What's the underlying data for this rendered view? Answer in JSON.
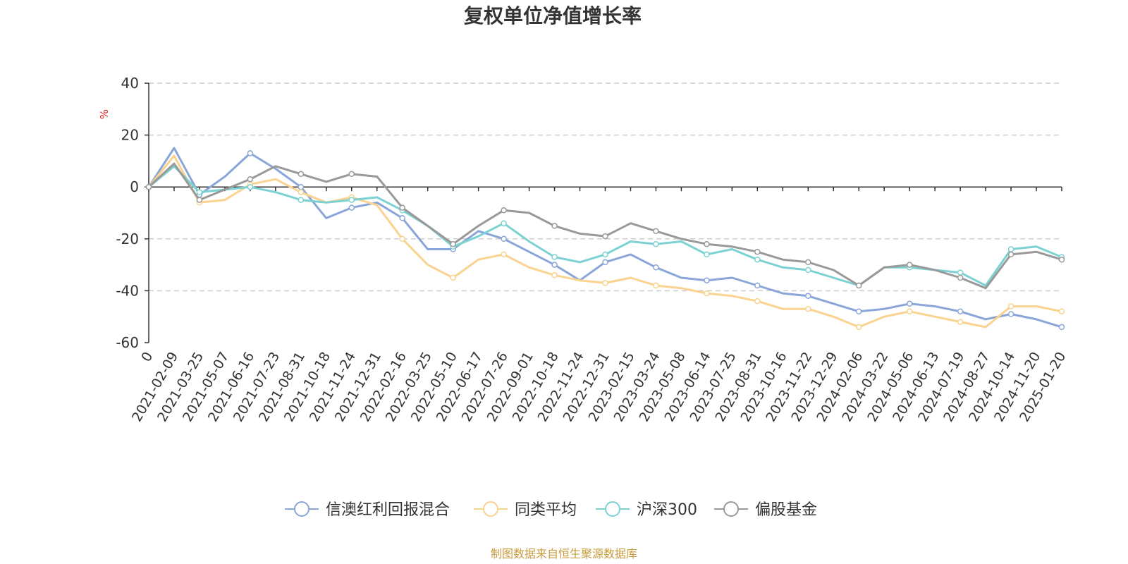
{
  "chart_data": {
    "type": "line",
    "title": "复权单位净值增长率",
    "ylabel": "%",
    "ylim": [
      -60,
      40
    ],
    "yticks": [
      40,
      20,
      0,
      -20,
      -40,
      -60
    ],
    "grid": true,
    "legend_position": "bottom",
    "x": [
      "0",
      "2021-02-09",
      "2021-03-25",
      "2021-05-07",
      "2021-06-16",
      "2021-07-23",
      "2021-08-31",
      "2021-10-18",
      "2021-11-24",
      "2021-12-31",
      "2022-02-16",
      "2022-03-25",
      "2022-05-10",
      "2022-06-17",
      "2022-07-26",
      "2022-09-01",
      "2022-10-18",
      "2022-11-24",
      "2022-12-31",
      "2023-02-15",
      "2023-03-24",
      "2023-05-08",
      "2023-06-14",
      "2023-07-25",
      "2023-08-31",
      "2023-10-16",
      "2023-11-22",
      "2023-12-29",
      "2024-02-06",
      "2024-03-22",
      "2024-05-06",
      "2024-06-13",
      "2024-07-19",
      "2024-08-27",
      "2024-10-14",
      "2024-11-20",
      "2025-01-20"
    ],
    "series": [
      {
        "name": "信澳红利回报混合",
        "color": "#8aa6d8",
        "values": [
          0,
          15,
          -3,
          4,
          13,
          7,
          0,
          -12,
          -8,
          -6,
          -12,
          -24,
          -24,
          -17,
          -20,
          -25,
          -30,
          -36,
          -29,
          -26,
          -31,
          -35,
          -36,
          -35,
          -38,
          -41,
          -42,
          -45,
          -48,
          -47,
          -45,
          -46,
          -48,
          -51,
          -49,
          -51,
          -54
        ]
      },
      {
        "name": "同类平均",
        "color": "#f9d38f",
        "values": [
          0,
          12,
          -6,
          -5,
          1,
          3,
          -2,
          -6,
          -4,
          -7,
          -20,
          -30,
          -35,
          -28,
          -26,
          -31,
          -34,
          -36,
          -37,
          -35,
          -38,
          -39,
          -41,
          -42,
          -44,
          -47,
          -47,
          -50,
          -54,
          -50,
          -48,
          -50,
          -52,
          -54,
          -46,
          -46,
          -48
        ]
      },
      {
        "name": "沪深300",
        "color": "#7cd2d3",
        "values": [
          0,
          8,
          -2,
          -1,
          0,
          -2,
          -5,
          -6,
          -5,
          -4,
          -9,
          -15,
          -23,
          -19,
          -14,
          -21,
          -27,
          -29,
          -26,
          -21,
          -22,
          -21,
          -26,
          -24,
          -28,
          -31,
          -32,
          -35,
          -38,
          -31,
          -31,
          -32,
          -33,
          -38,
          -24,
          -23,
          -27
        ]
      },
      {
        "name": "偏股基金",
        "color": "#999999",
        "values": [
          0,
          9,
          -5,
          -1,
          3,
          8,
          5,
          2,
          5,
          4,
          -8,
          -15,
          -22,
          -15,
          -9,
          -10,
          -15,
          -18,
          -19,
          -14,
          -17,
          -20,
          -22,
          -23,
          -25,
          -28,
          -29,
          -32,
          -38,
          -31,
          -30,
          -32,
          -35,
          -39,
          -26,
          -25,
          -28
        ]
      }
    ]
  },
  "source_note": "制图数据来自恒生聚源数据库"
}
